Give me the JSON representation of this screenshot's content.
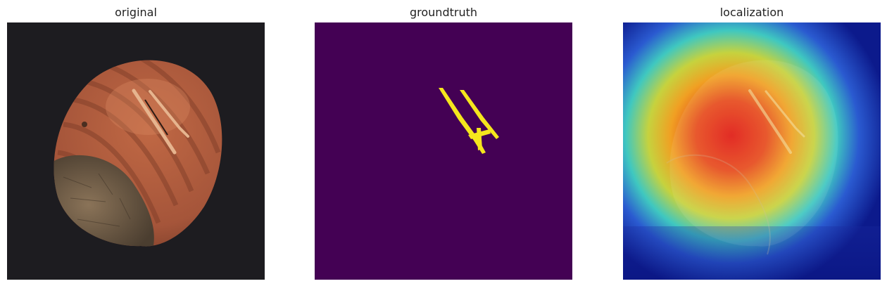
{
  "panels": [
    {
      "title": "original",
      "image": "hazelnut-photo"
    },
    {
      "title": "groundtruth",
      "image": "defect-mask"
    },
    {
      "title": "localization",
      "image": "heatmap-overlay"
    }
  ],
  "colors": {
    "photo_background": "#1d1c20",
    "nut_shell": "#a8583c",
    "nut_base": "#6f5a44",
    "mask_background": "#440154",
    "mask_defect": "#f5e61d",
    "heat_low": "#0c1a8c",
    "heat_mid": "#3fc8c0",
    "heat_high": "#e82a1c"
  }
}
